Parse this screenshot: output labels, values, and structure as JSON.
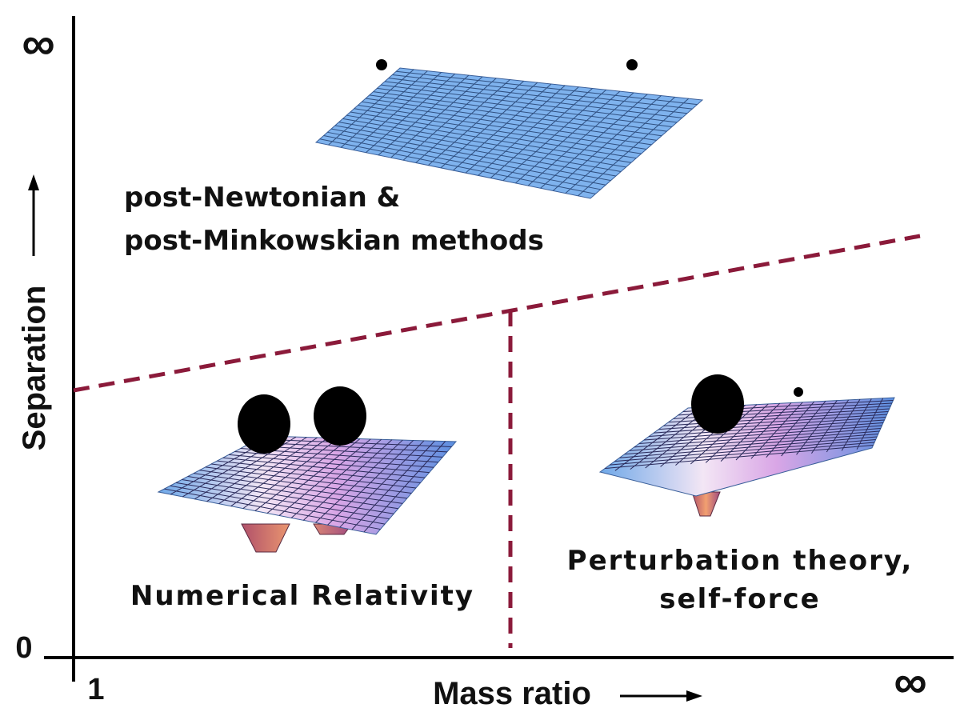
{
  "axes": {
    "y_label": "Separation",
    "x_label": "Mass ratio",
    "y_top": "∞",
    "y_bottom": "0",
    "x_left": "1",
    "x_right": "∞"
  },
  "regions": [
    {
      "label_lines": [
        "post-Newtonian &",
        "post-Minkowskian methods"
      ]
    },
    {
      "label": "Numerical Relativity"
    },
    {
      "label_lines": [
        "Perturbation theory,",
        "self-force"
      ]
    }
  ]
}
